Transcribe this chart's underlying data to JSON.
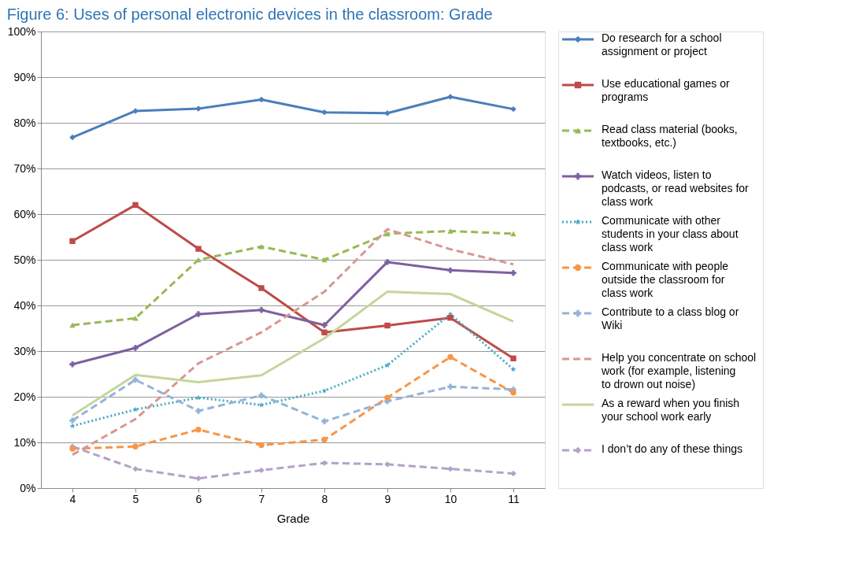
{
  "chart_data": {
    "type": "line",
    "title": "Figure 6: Uses of personal electronic devices in the classroom: Grade",
    "xlabel": "Grade",
    "categories": [
      "4",
      "5",
      "6",
      "7",
      "8",
      "9",
      "10",
      "11"
    ],
    "ylim": [
      0,
      100
    ],
    "yticks": [
      {
        "value": 0,
        "label": "0%"
      },
      {
        "value": 10,
        "label": "10%"
      },
      {
        "value": 20,
        "label": "20%"
      },
      {
        "value": 30,
        "label": "30%"
      },
      {
        "value": 40,
        "label": "40%"
      },
      {
        "value": 50,
        "label": "50%"
      },
      {
        "value": 60,
        "label": "60%"
      },
      {
        "value": 70,
        "label": "70%"
      },
      {
        "value": 80,
        "label": "80%"
      },
      {
        "value": 90,
        "label": "90%"
      },
      {
        "value": 100,
        "label": "100%"
      }
    ],
    "grid": "y",
    "legend": "right",
    "series": [
      {
        "name": "Do research for a school assignment or project",
        "color": "#4a7ebb",
        "marker": "diamond",
        "line_style": "solid",
        "values": [
          76.8,
          82.6,
          83.1,
          85.1,
          82.3,
          82.1,
          85.7,
          83.0
        ]
      },
      {
        "name": "Use educational games or programs",
        "color": "#be4b48",
        "marker": "square",
        "line_style": "solid",
        "values": [
          54.1,
          62.0,
          52.4,
          43.8,
          34.1,
          35.6,
          37.3,
          28.4
        ]
      },
      {
        "name": "Read class material (books, textbooks, etc.)",
        "color": "#98b954",
        "marker": "triangle",
        "line_style": "dashed",
        "values": [
          35.7,
          37.2,
          50.0,
          52.9,
          50.0,
          55.7,
          56.3,
          55.7
        ]
      },
      {
        "name": "Watch videos, listen to podcasts, or read websites for class work",
        "color": "#7d60a0",
        "marker": "cross",
        "line_style": "solid",
        "values": [
          27.1,
          30.7,
          38.1,
          39.0,
          35.7,
          49.5,
          47.7,
          47.1
        ]
      },
      {
        "name": "Communicate with other students in your class about class work",
        "color": "#46aac5",
        "marker": "star",
        "line_style": "dotted",
        "values": [
          13.6,
          17.2,
          19.8,
          18.2,
          21.3,
          26.9,
          38.1,
          26.0
        ]
      },
      {
        "name": "Communicate with people outside the classroom for class work",
        "color": "#f79646",
        "marker": "circle",
        "line_style": "dashed",
        "values": [
          8.6,
          9.1,
          12.8,
          9.4,
          10.6,
          19.8,
          28.7,
          20.9
        ]
      },
      {
        "name": "Contribute to a class blog or Wiki",
        "color": "#95b3d7",
        "marker": "cross",
        "line_style": "dashed",
        "values": [
          14.8,
          23.7,
          16.9,
          20.3,
          14.6,
          19.0,
          22.2,
          21.6
        ]
      },
      {
        "name": "Help you concentrate on school work (for example, listening to drown out noise)",
        "color": "#d99694",
        "marker": "none",
        "line_style": "dashed",
        "values": [
          7.3,
          15.1,
          27.3,
          34.1,
          43.0,
          56.7,
          52.3,
          49.0
        ]
      },
      {
        "name": "As a reward when you finish your school work early",
        "color": "#c3d69b",
        "marker": "none",
        "line_style": "solid",
        "values": [
          15.9,
          24.8,
          23.2,
          24.7,
          32.8,
          43.0,
          42.5,
          36.5
        ]
      },
      {
        "name": "I don’t do any of these things",
        "color": "#b3a2c7",
        "marker": "diamond",
        "line_style": "dashed",
        "values": [
          9.1,
          4.2,
          2.1,
          3.9,
          5.5,
          5.2,
          4.2,
          3.2
        ]
      }
    ]
  }
}
